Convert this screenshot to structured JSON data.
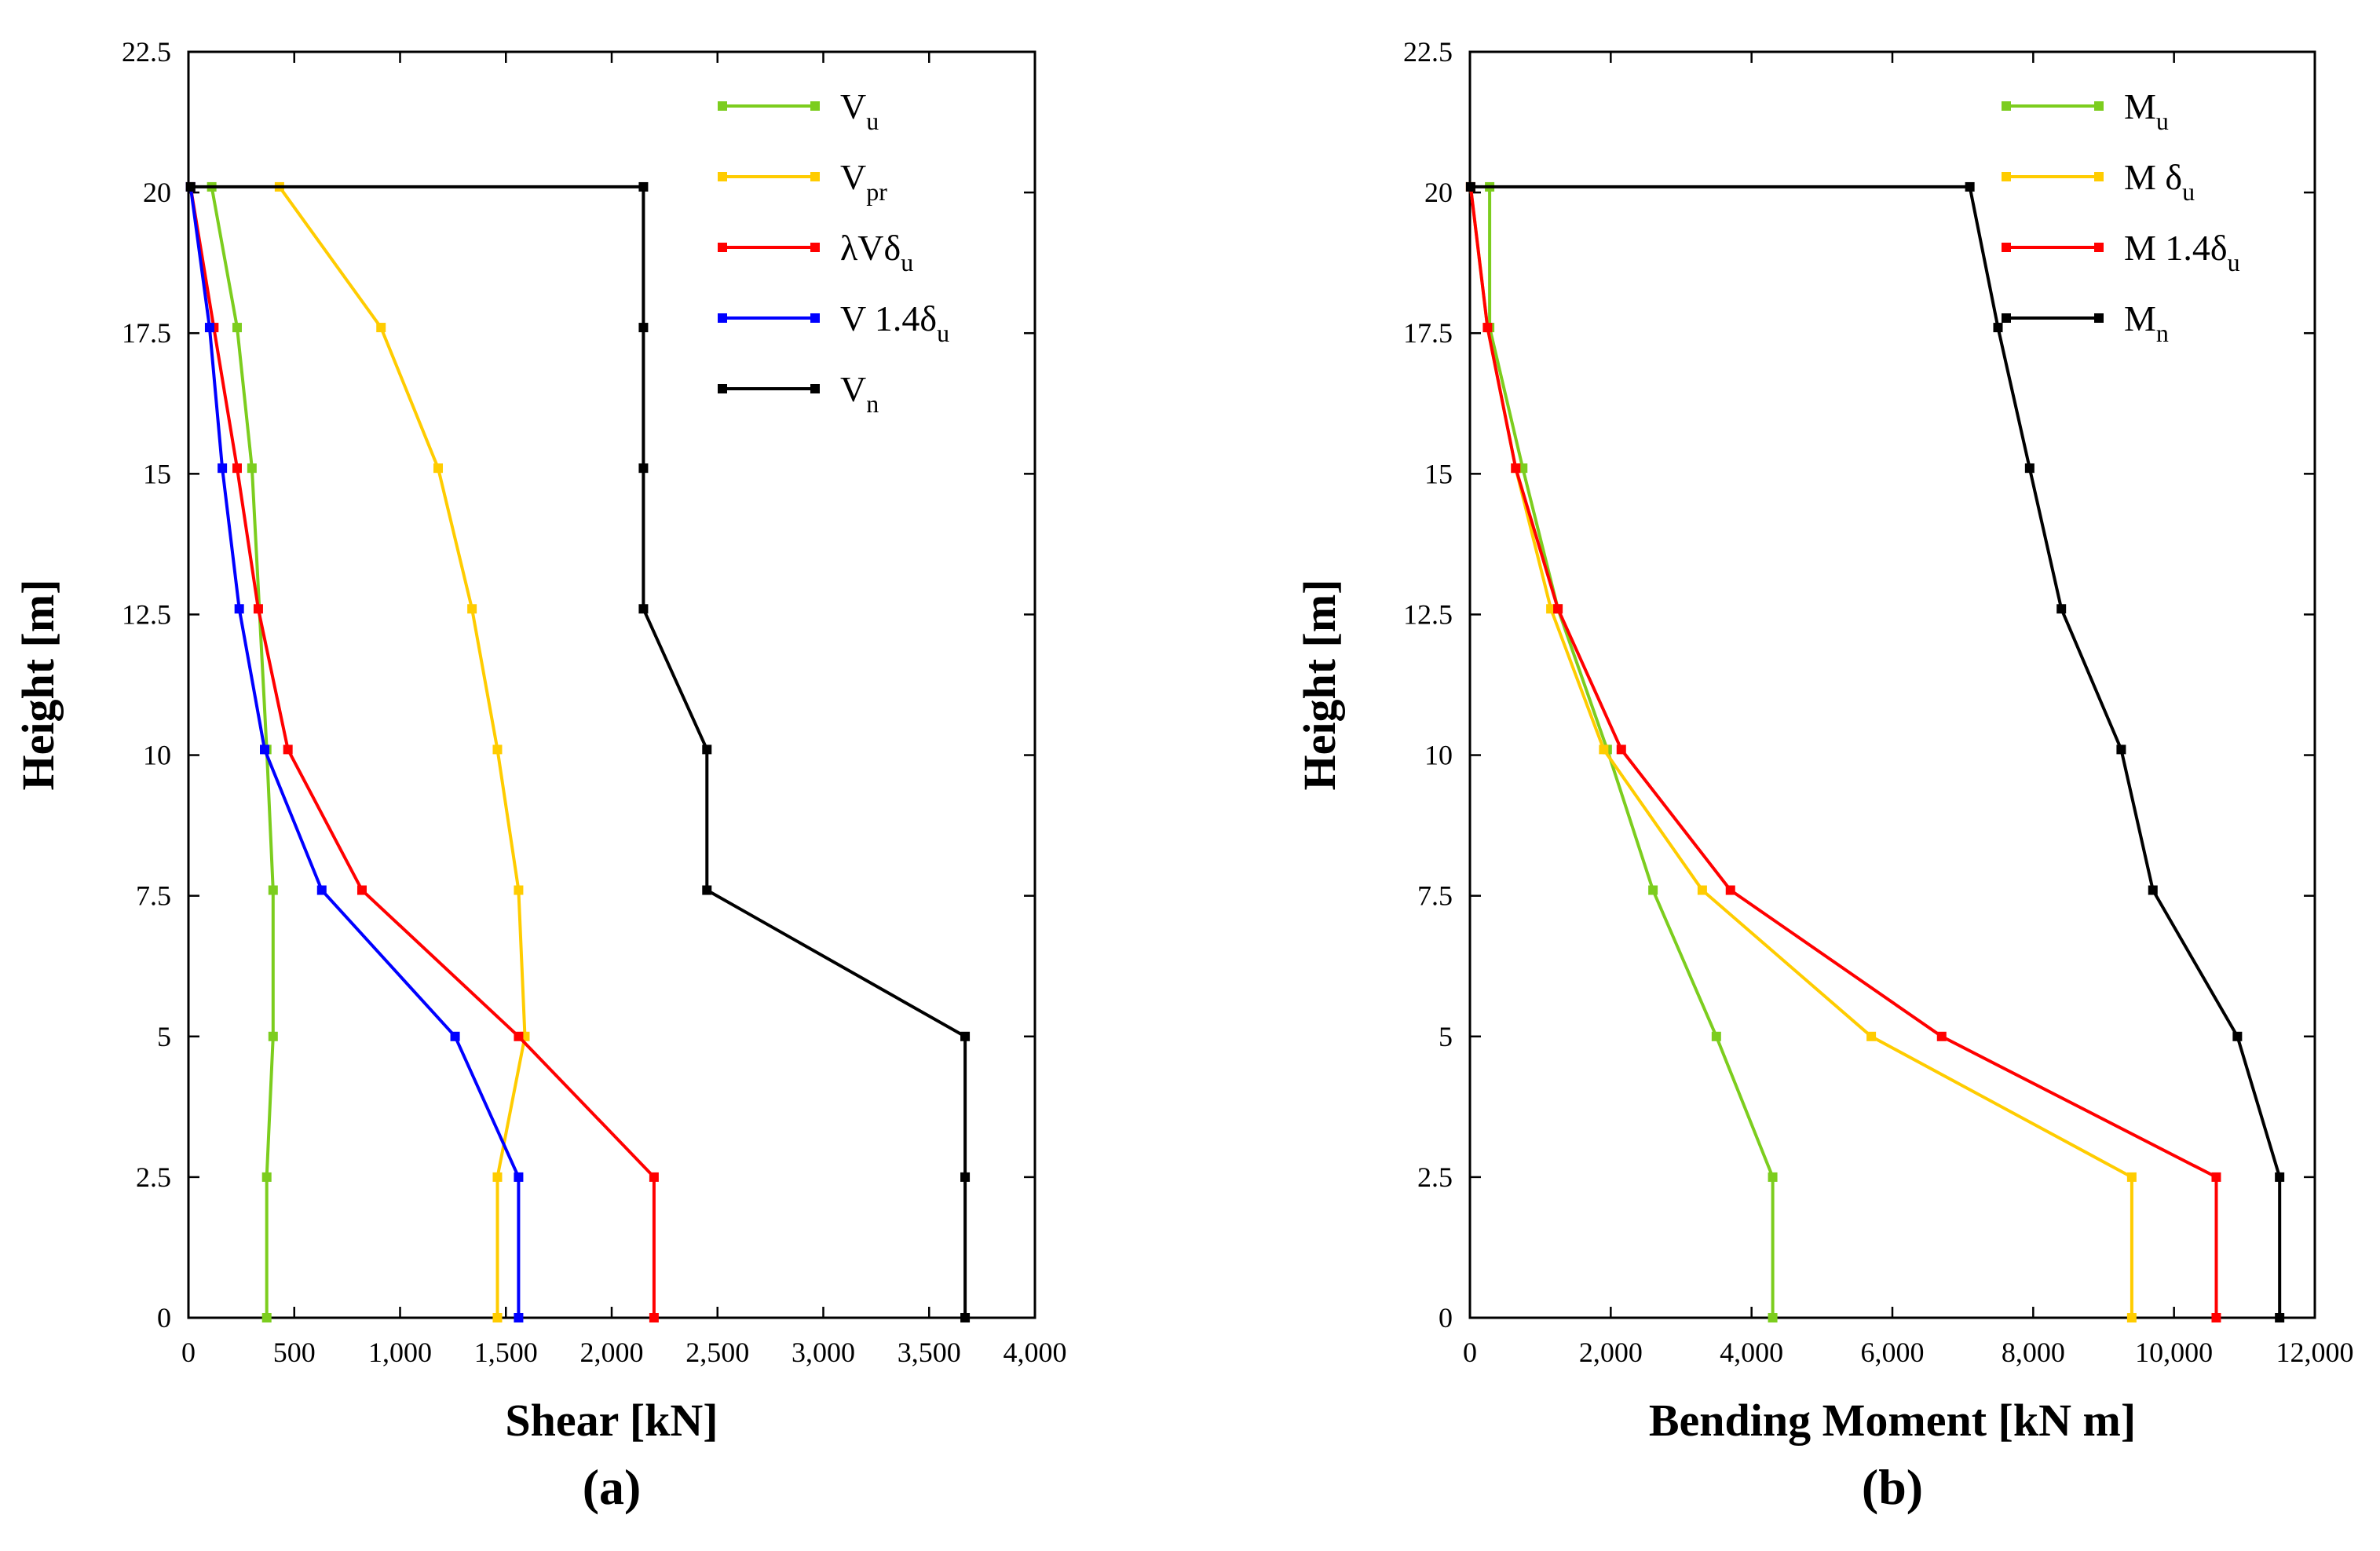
{
  "chart_data": [
    {
      "type": "line",
      "panel_label": "(a)",
      "xlabel": "Shear [kN]",
      "ylabel": "Height [m]",
      "xlim": [
        0,
        4000
      ],
      "ylim": [
        0,
        22.5
      ],
      "x_ticks": [
        0,
        500,
        1000,
        1500,
        2000,
        2500,
        3000,
        3500,
        4000
      ],
      "x_tick_labels": [
        "0",
        "500",
        "1,000",
        "1,500",
        "2,000",
        "2,500",
        "3,000",
        "3,500",
        "4,000"
      ],
      "y_ticks": [
        0,
        2.5,
        5,
        7.5,
        10,
        12.5,
        15,
        17.5,
        20,
        22.5
      ],
      "y_tick_labels": [
        "0",
        "2.5",
        "5",
        "7.5",
        "10",
        "12.5",
        "15",
        "17.5",
        "20",
        "22.5"
      ],
      "legend_position": "top-right",
      "series": [
        {
          "name": "Vu",
          "label_main": "V",
          "label_sub": "u",
          "color": "#7ccd1e",
          "x": [
            370,
            370,
            400,
            400,
            370,
            300,
            230,
            110
          ],
          "y": [
            0,
            2.5,
            5,
            7.6,
            10.1,
            15.1,
            17.6,
            20.1
          ]
        },
        {
          "name": "Vpr",
          "label_main": "V",
          "label_sub": "pr",
          "color": "#ffcc00",
          "x": [
            1460,
            1460,
            1590,
            1560,
            1460,
            1340,
            1180,
            910,
            430
          ],
          "y": [
            0,
            2.5,
            5,
            7.6,
            10.1,
            12.6,
            15.1,
            17.6,
            20.1
          ]
        },
        {
          "name": "λVδu",
          "label_main": "λVδ",
          "label_sub": "u",
          "color": "#ff0000",
          "x": [
            2200,
            2200,
            1560,
            820,
            470,
            330,
            230,
            120,
            10
          ],
          "y": [
            0,
            2.5,
            5,
            7.6,
            10.1,
            12.6,
            15.1,
            17.6,
            20.1
          ]
        },
        {
          "name": "V 1.4δu",
          "label_main": "V 1.4δ",
          "label_sub": "u",
          "color": "#0000ff",
          "x": [
            1560,
            1560,
            1260,
            630,
            360,
            240,
            160,
            100,
            10
          ],
          "y": [
            0,
            2.5,
            5,
            7.6,
            10.1,
            12.6,
            15.1,
            17.6,
            20.1
          ]
        },
        {
          "name": "Vn",
          "label_main": "V",
          "label_sub": "n",
          "color": "#000000",
          "x": [
            3670,
            3670,
            3670,
            2450,
            2450,
            2150,
            2150,
            2150,
            2150,
            10
          ],
          "y": [
            0,
            2.5,
            5,
            7.6,
            10.1,
            12.6,
            15.1,
            17.6,
            20.1,
            20.1
          ]
        }
      ]
    },
    {
      "type": "line",
      "panel_label": "(b)",
      "xlabel": "Bending Moment [kN m]",
      "ylabel": "Height [m]",
      "xlim": [
        0,
        12000
      ],
      "ylim": [
        0,
        22.5
      ],
      "x_ticks": [
        0,
        2000,
        4000,
        6000,
        8000,
        10000,
        12000
      ],
      "x_tick_labels": [
        "0",
        "2,000",
        "4,000",
        "6,000",
        "8,000",
        "10,000",
        "12,000"
      ],
      "y_ticks": [
        0,
        2.5,
        5,
        7.5,
        10,
        12.5,
        15,
        17.5,
        20,
        22.5
      ],
      "y_tick_labels": [
        "0",
        "2.5",
        "5",
        "7.5",
        "10",
        "12.5",
        "15",
        "17.5",
        "20",
        "22.5"
      ],
      "legend_position": "top-right",
      "series": [
        {
          "name": "Mu",
          "label_main": "M",
          "label_sub": "u",
          "color": "#7ccd1e",
          "x": [
            4300,
            4300,
            3500,
            2600,
            1950,
            1250,
            750,
            280,
            280
          ],
          "y": [
            0,
            2.5,
            5,
            7.6,
            10.1,
            12.6,
            15.1,
            17.6,
            20.1
          ]
        },
        {
          "name": "M δu",
          "label_main": "M  δ",
          "label_sub": "u",
          "color": "#ffcc00",
          "x": [
            9400,
            9400,
            5700,
            3300,
            1900,
            1150,
            650,
            250,
            10
          ],
          "y": [
            0,
            2.5,
            5,
            7.6,
            10.1,
            12.6,
            15.1,
            17.6,
            20.1
          ]
        },
        {
          "name": "M 1.4δu",
          "label_main": "M 1.4δ",
          "label_sub": "u",
          "color": "#ff0000",
          "x": [
            10600,
            10600,
            6700,
            3700,
            2150,
            1250,
            650,
            250,
            10
          ],
          "y": [
            0,
            2.5,
            5,
            7.6,
            10.1,
            12.6,
            15.1,
            17.6,
            20.1
          ]
        },
        {
          "name": "Mn",
          "label_main": "M",
          "label_sub": "n",
          "color": "#000000",
          "x": [
            11500,
            11500,
            10900,
            9700,
            9250,
            8400,
            7950,
            7500,
            7100,
            10
          ],
          "y": [
            0,
            2.5,
            5,
            7.6,
            10.1,
            12.6,
            15.1,
            17.6,
            20.1,
            20.1
          ]
        }
      ]
    }
  ]
}
